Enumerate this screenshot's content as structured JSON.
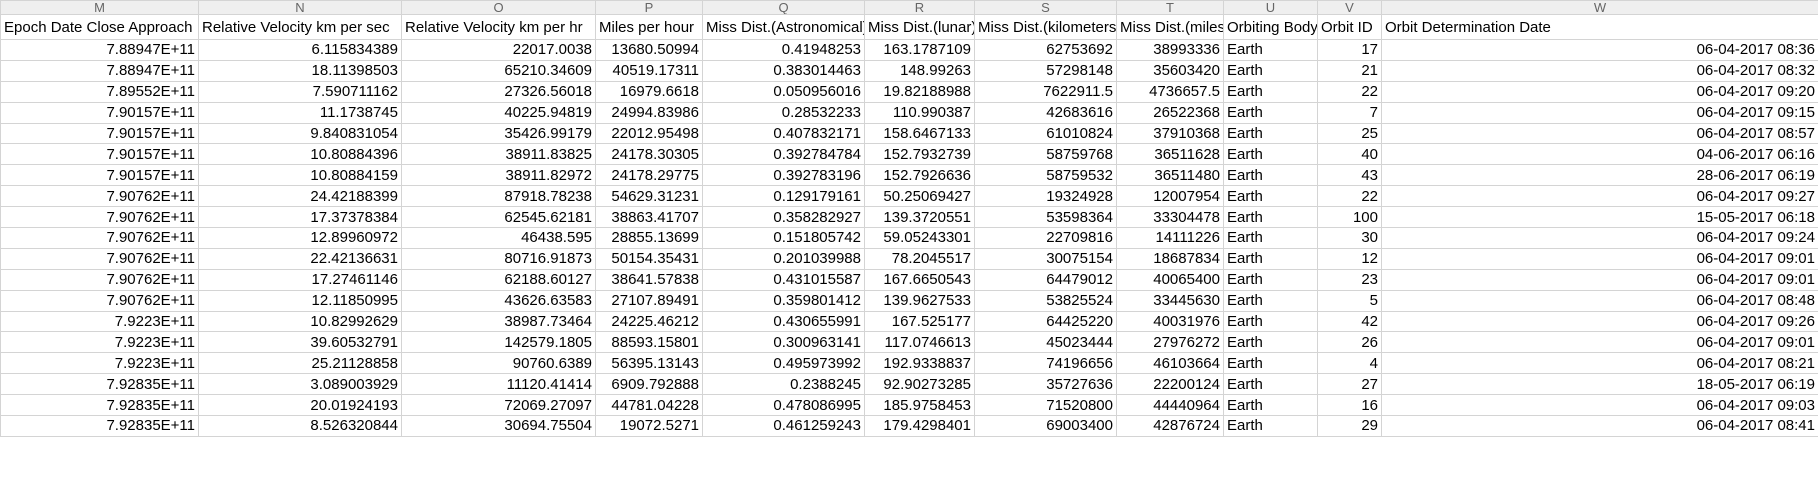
{
  "column_letters": [
    "M",
    "N",
    "O",
    "P",
    "Q",
    "R",
    "S",
    "T",
    "U",
    "V",
    "W"
  ],
  "headers": [
    "Epoch Date Close Approach",
    "Relative Velocity km per sec",
    "Relative Velocity km per hr",
    "Miles per hour",
    "Miss Dist.(Astronomical)",
    "Miss Dist.(lunar)",
    "Miss Dist.(kilometers)",
    "Miss Dist.(miles)",
    "Orbiting Body",
    "Orbit ID",
    "Orbit Determination Date"
  ],
  "rows": [
    [
      "7.88947E+11",
      "6.115834389",
      "22017.0038",
      "13680.50994",
      "0.41948253",
      "163.1787109",
      "62753692",
      "38993336",
      "Earth",
      "17",
      "06-04-2017 08:36"
    ],
    [
      "7.88947E+11",
      "18.11398503",
      "65210.34609",
      "40519.17311",
      "0.383014463",
      "148.99263",
      "57298148",
      "35603420",
      "Earth",
      "21",
      "06-04-2017 08:32"
    ],
    [
      "7.89552E+11",
      "7.590711162",
      "27326.56018",
      "16979.6618",
      "0.050956016",
      "19.82188988",
      "7622911.5",
      "4736657.5",
      "Earth",
      "22",
      "06-04-2017 09:20"
    ],
    [
      "7.90157E+11",
      "11.1738745",
      "40225.94819",
      "24994.83986",
      "0.28532233",
      "110.990387",
      "42683616",
      "26522368",
      "Earth",
      "7",
      "06-04-2017 09:15"
    ],
    [
      "7.90157E+11",
      "9.840831054",
      "35426.99179",
      "22012.95498",
      "0.407832171",
      "158.6467133",
      "61010824",
      "37910368",
      "Earth",
      "25",
      "06-04-2017 08:57"
    ],
    [
      "7.90157E+11",
      "10.80884396",
      "38911.83825",
      "24178.30305",
      "0.392784784",
      "152.7932739",
      "58759768",
      "36511628",
      "Earth",
      "40",
      "04-06-2017 06:16"
    ],
    [
      "7.90157E+11",
      "10.80884159",
      "38911.82972",
      "24178.29775",
      "0.392783196",
      "152.7926636",
      "58759532",
      "36511480",
      "Earth",
      "43",
      "28-06-2017 06:19"
    ],
    [
      "7.90762E+11",
      "24.42188399",
      "87918.78238",
      "54629.31231",
      "0.129179161",
      "50.25069427",
      "19324928",
      "12007954",
      "Earth",
      "22",
      "06-04-2017 09:27"
    ],
    [
      "7.90762E+11",
      "17.37378384",
      "62545.62181",
      "38863.41707",
      "0.358282927",
      "139.3720551",
      "53598364",
      "33304478",
      "Earth",
      "100",
      "15-05-2017 06:18"
    ],
    [
      "7.90762E+11",
      "12.89960972",
      "46438.595",
      "28855.13699",
      "0.151805742",
      "59.05243301",
      "22709816",
      "14111226",
      "Earth",
      "30",
      "06-04-2017 09:24"
    ],
    [
      "7.90762E+11",
      "22.42136631",
      "80716.91873",
      "50154.35431",
      "0.201039988",
      "78.2045517",
      "30075154",
      "18687834",
      "Earth",
      "12",
      "06-04-2017 09:01"
    ],
    [
      "7.90762E+11",
      "17.27461146",
      "62188.60127",
      "38641.57838",
      "0.431015587",
      "167.6650543",
      "64479012",
      "40065400",
      "Earth",
      "23",
      "06-04-2017 09:01"
    ],
    [
      "7.90762E+11",
      "12.11850995",
      "43626.63583",
      "27107.89491",
      "0.359801412",
      "139.9627533",
      "53825524",
      "33445630",
      "Earth",
      "5",
      "06-04-2017 08:48"
    ],
    [
      "7.9223E+11",
      "10.82992629",
      "38987.73464",
      "24225.46212",
      "0.430655991",
      "167.525177",
      "64425220",
      "40031976",
      "Earth",
      "42",
      "06-04-2017 09:26"
    ],
    [
      "7.9223E+11",
      "39.60532791",
      "142579.1805",
      "88593.15801",
      "0.300963141",
      "117.0746613",
      "45023444",
      "27976272",
      "Earth",
      "26",
      "06-04-2017 09:01"
    ],
    [
      "7.9223E+11",
      "25.21128858",
      "90760.6389",
      "56395.13143",
      "0.495973992",
      "192.9338837",
      "74196656",
      "46103664",
      "Earth",
      "4",
      "06-04-2017 08:21"
    ],
    [
      "7.92835E+11",
      "3.089003929",
      "11120.41414",
      "6909.792888",
      "0.2388245",
      "92.90273285",
      "35727636",
      "22200124",
      "Earth",
      "27",
      "18-05-2017 06:19"
    ],
    [
      "7.92835E+11",
      "20.01924193",
      "72069.27097",
      "44781.04228",
      "0.478086995",
      "185.9758453",
      "71520800",
      "44440964",
      "Earth",
      "16",
      "06-04-2017 09:03"
    ],
    [
      "7.92835E+11",
      "8.526320844",
      "30694.75504",
      "19072.5271",
      "0.461259243",
      "179.4298401",
      "69003400",
      "42876724",
      "Earth",
      "29",
      "06-04-2017 08:41"
    ]
  ]
}
